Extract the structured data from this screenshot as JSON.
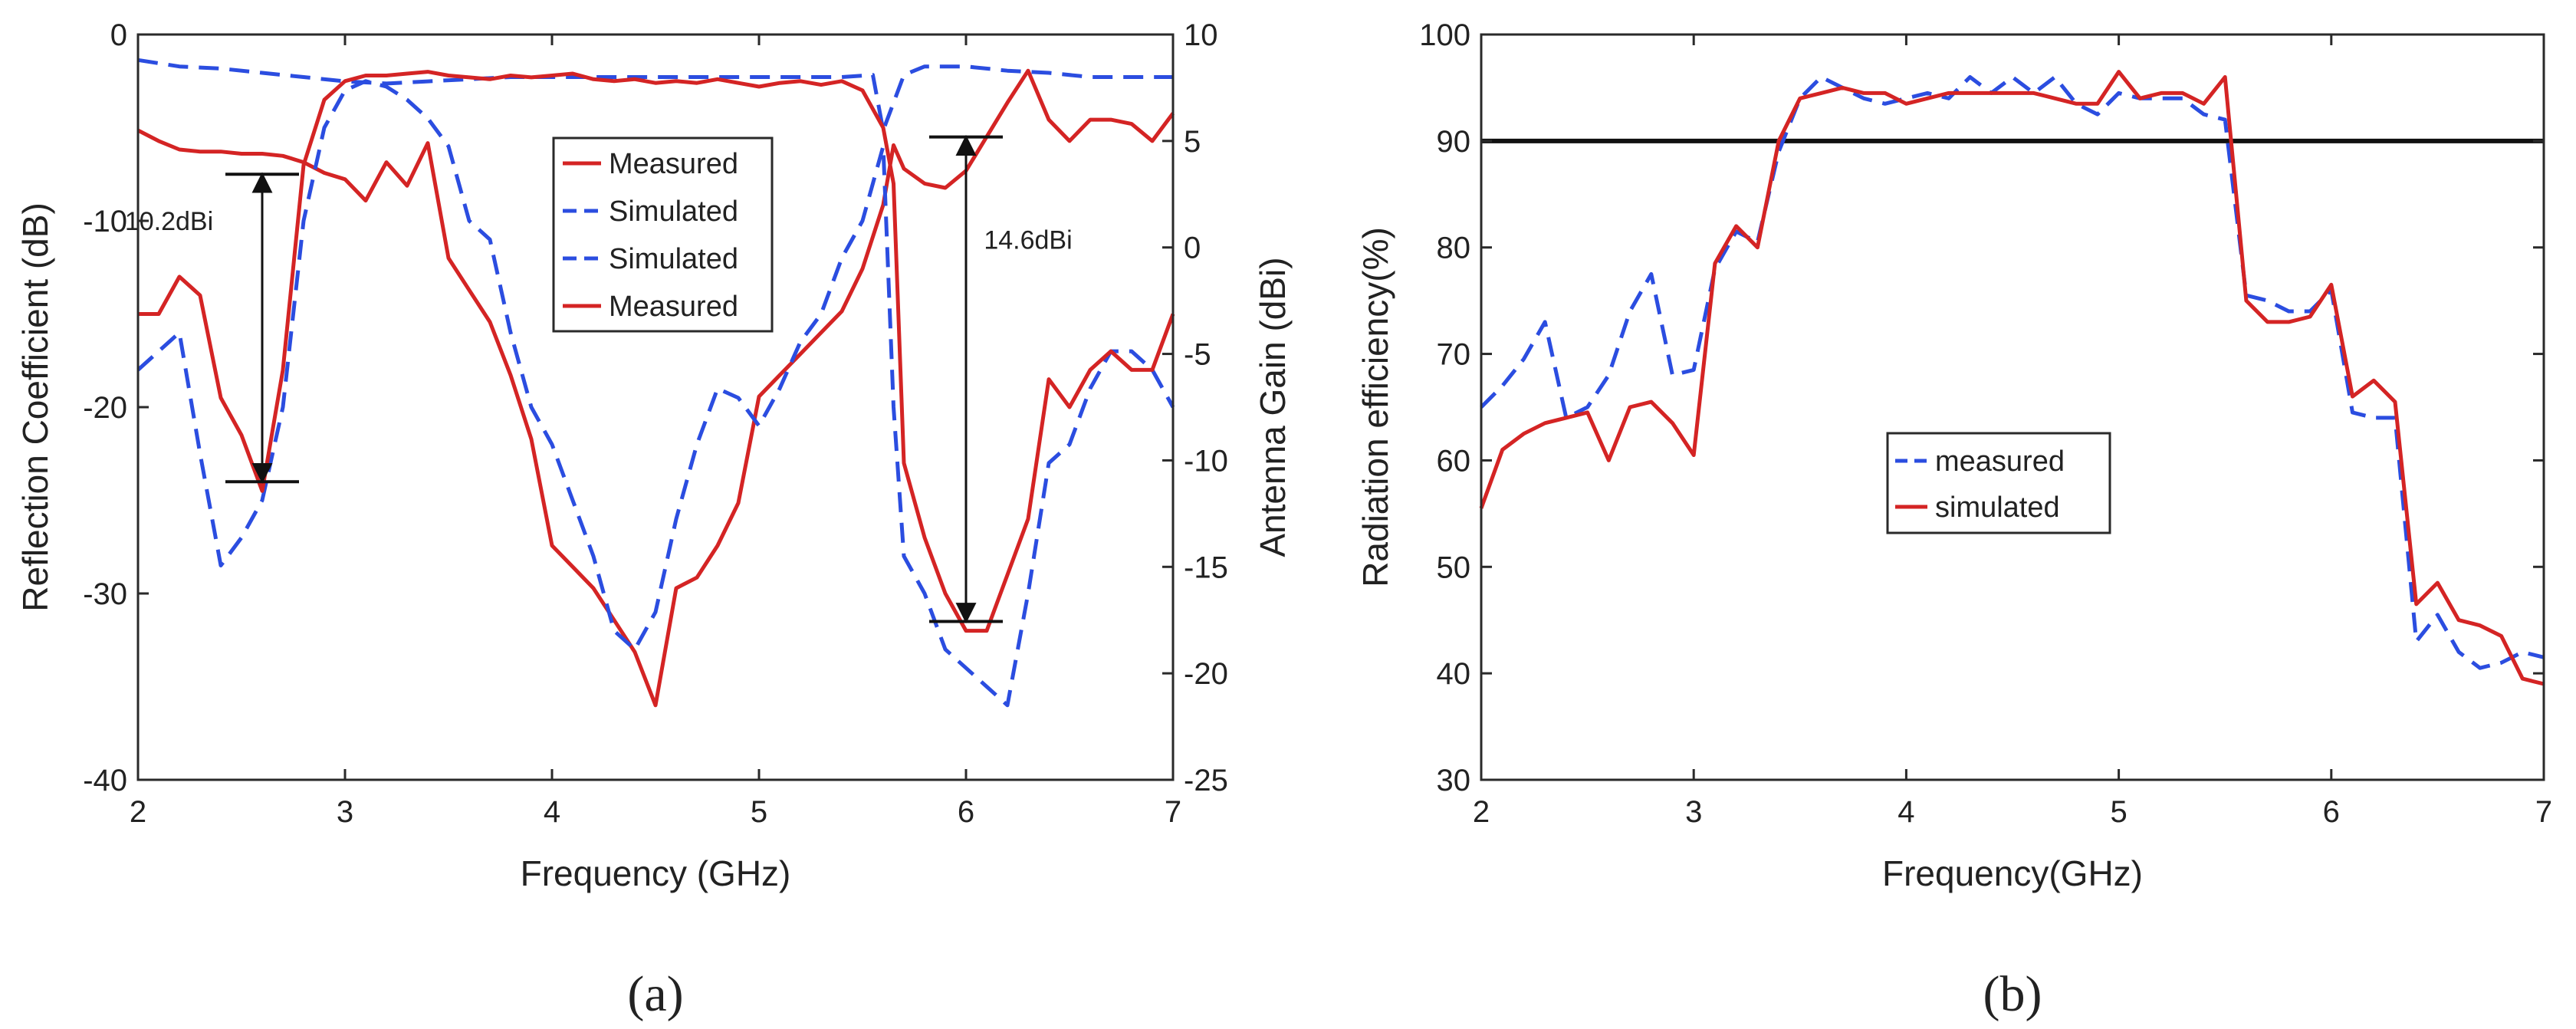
{
  "chart_data": [
    {
      "panel": "a",
      "caption": "(a)",
      "type": "line",
      "xlabel": "Frequency (GHz)",
      "ylabel": "Reflection Coefficient (dB)",
      "y2label": "Antenna Gain (dBi)",
      "xlim": [
        2,
        7
      ],
      "ylim": [
        -40,
        0
      ],
      "y2lim": [
        -25,
        10
      ],
      "xticks": [
        "2",
        "3",
        "4",
        "5",
        "6",
        "7"
      ],
      "yticks": [
        "-40",
        "-30",
        "-20",
        "-10",
        "0"
      ],
      "y2ticks": [
        "-25",
        "-20",
        "-15",
        "-10",
        "-5",
        "0",
        "5",
        "10"
      ],
      "legend_position": "center",
      "legend": [
        "Measured",
        "Simulated",
        "Simulated",
        "Measured"
      ],
      "series": [
        {
          "name": "Measured",
          "axis": "right",
          "style": "solid",
          "color": "#d42424",
          "x": [
            2.0,
            2.1,
            2.2,
            2.3,
            2.4,
            2.5,
            2.6,
            2.7,
            2.8,
            2.9,
            3.0,
            3.1,
            3.2,
            3.3,
            3.4,
            3.5,
            3.6,
            3.7,
            3.8,
            3.9,
            4.0,
            4.1,
            4.2,
            4.3,
            4.4,
            4.5,
            4.6,
            4.7,
            4.8,
            4.9,
            5.0,
            5.1,
            5.2,
            5.3,
            5.4,
            5.5,
            5.6,
            5.65,
            5.7,
            5.8,
            5.9,
            6.0,
            6.1,
            6.2,
            6.3,
            6.4,
            6.5,
            6.6,
            6.7,
            6.8,
            6.9,
            7.0
          ],
          "values": [
            5.5,
            5.0,
            4.6,
            4.5,
            4.5,
            4.4,
            4.4,
            4.3,
            4.0,
            3.5,
            3.2,
            2.2,
            4.0,
            2.9,
            4.9,
            -0.5,
            -2.0,
            -3.5,
            -6.0,
            -9.0,
            -14.0,
            -15.0,
            -16.0,
            -17.5,
            -19.0,
            -21.5,
            -16.0,
            -15.5,
            -14.0,
            -12.0,
            -7.0,
            -6.0,
            -5.0,
            -4.0,
            -3.0,
            -1.0,
            2.0,
            4.8,
            3.7,
            3.0,
            2.8,
            3.6,
            5.2,
            6.8,
            8.3,
            6.0,
            5.0,
            6.0,
            6.0,
            5.8,
            5.0,
            6.3
          ]
        },
        {
          "name": "Simulated",
          "axis": "right",
          "style": "dashed",
          "color": "#2b4de0",
          "x": [
            2.0,
            2.2,
            2.4,
            2.6,
            2.8,
            3.0,
            3.2,
            3.4,
            3.6,
            3.8,
            4.0,
            4.2,
            4.4,
            4.6,
            4.8,
            5.0,
            5.2,
            5.4,
            5.55,
            5.6,
            5.7,
            5.8,
            6.0,
            6.2,
            6.4,
            6.6,
            6.8,
            7.0
          ],
          "values": [
            8.8,
            8.5,
            8.4,
            8.2,
            8.0,
            7.8,
            7.7,
            7.8,
            7.9,
            8.0,
            8.0,
            8.0,
            8.0,
            8.0,
            8.0,
            8.0,
            8.0,
            8.0,
            8.1,
            5.5,
            8.1,
            8.5,
            8.5,
            8.3,
            8.2,
            8.0,
            8.0,
            8.0
          ]
        },
        {
          "name": "Simulated",
          "axis": "left",
          "style": "dashed",
          "color": "#2b4de0",
          "x": [
            2.0,
            2.1,
            2.2,
            2.3,
            2.4,
            2.5,
            2.6,
            2.7,
            2.8,
            2.9,
            3.0,
            3.1,
            3.2,
            3.3,
            3.4,
            3.5,
            3.6,
            3.7,
            3.8,
            3.9,
            4.0,
            4.1,
            4.2,
            4.3,
            4.4,
            4.5,
            4.6,
            4.7,
            4.8,
            4.9,
            5.0,
            5.1,
            5.2,
            5.3,
            5.4,
            5.5,
            5.6,
            5.65,
            5.7,
            5.8,
            5.9,
            6.0,
            6.1,
            6.2,
            6.3,
            6.4,
            6.5,
            6.6,
            6.7,
            6.8,
            6.9,
            7.0
          ],
          "values": [
            -18.0,
            -17.0,
            -16.0,
            -22.5,
            -28.5,
            -27.0,
            -25.0,
            -20.0,
            -10.0,
            -5.0,
            -3.0,
            -2.5,
            -2.8,
            -3.5,
            -4.5,
            -6.0,
            -10.0,
            -11.0,
            -16.0,
            -20.0,
            -22.0,
            -25.0,
            -28.0,
            -32.0,
            -33.0,
            -31.0,
            -26.0,
            -22.0,
            -19.0,
            -19.5,
            -21.0,
            -19.0,
            -16.5,
            -15.0,
            -12.0,
            -10.0,
            -6.0,
            -20.0,
            -28.0,
            -30.0,
            -33.0,
            -34.0,
            -35.0,
            -36.0,
            -30.0,
            -23.0,
            -22.0,
            -19.0,
            -17.0,
            -17.0,
            -18.0,
            -20.0
          ]
        },
        {
          "name": "Measured",
          "axis": "left",
          "style": "solid",
          "color": "#d42424",
          "x": [
            2.0,
            2.1,
            2.2,
            2.3,
            2.4,
            2.5,
            2.6,
            2.7,
            2.8,
            2.9,
            3.0,
            3.1,
            3.2,
            3.3,
            3.4,
            3.5,
            3.6,
            3.7,
            3.8,
            3.9,
            4.0,
            4.1,
            4.2,
            4.3,
            4.4,
            4.5,
            4.6,
            4.7,
            4.8,
            4.9,
            5.0,
            5.1,
            5.2,
            5.3,
            5.4,
            5.5,
            5.6,
            5.65,
            5.7,
            5.8,
            5.9,
            6.0,
            6.1,
            6.2,
            6.3,
            6.4,
            6.5,
            6.6,
            6.7,
            6.8,
            6.9,
            7.0
          ],
          "values": [
            -15.0,
            -15.0,
            -13.0,
            -14.0,
            -19.5,
            -21.5,
            -24.5,
            -18.0,
            -7.0,
            -3.5,
            -2.5,
            -2.2,
            -2.2,
            -2.1,
            -2.0,
            -2.2,
            -2.3,
            -2.4,
            -2.2,
            -2.3,
            -2.2,
            -2.1,
            -2.4,
            -2.5,
            -2.4,
            -2.6,
            -2.5,
            -2.6,
            -2.4,
            -2.6,
            -2.8,
            -2.6,
            -2.5,
            -2.7,
            -2.5,
            -3.0,
            -5.0,
            -8.0,
            -23.0,
            -27.0,
            -30.0,
            -32.0,
            -32.0,
            -29.0,
            -26.0,
            -18.5,
            -20.0,
            -18.0,
            -17.0,
            -18.0,
            -18.0,
            -15.0
          ]
        }
      ],
      "annotations": [
        {
          "text": "10.2dBi",
          "x": 2.15,
          "y": -10.5,
          "arrow_x": 2.6,
          "from_y": -7.5,
          "to_y": -24.0
        },
        {
          "text": "14.6dBi",
          "x": 6.3,
          "y": -11.5,
          "arrow_x": 6.0,
          "from_y": -5.5,
          "to_y": -31.5
        }
      ]
    },
    {
      "panel": "b",
      "caption": "(b)",
      "type": "line",
      "xlabel": "Frequency(GHz)",
      "ylabel": "Radiation efficiency(%)",
      "xlim": [
        2,
        7
      ],
      "ylim": [
        30,
        100
      ],
      "xticks": [
        "2",
        "3",
        "4",
        "5",
        "6",
        "7"
      ],
      "yticks": [
        "30",
        "40",
        "50",
        "60",
        "70",
        "80",
        "90",
        "100"
      ],
      "legend_position": "center",
      "legend": [
        "measured",
        "simulated"
      ],
      "reference_line": 90,
      "series": [
        {
          "name": "measured",
          "style": "dashed",
          "color": "#2b4de0",
          "x": [
            2.0,
            2.1,
            2.2,
            2.3,
            2.4,
            2.5,
            2.6,
            2.7,
            2.8,
            2.9,
            3.0,
            3.1,
            3.2,
            3.3,
            3.4,
            3.5,
            3.6,
            3.7,
            3.8,
            3.9,
            4.0,
            4.1,
            4.2,
            4.3,
            4.4,
            4.5,
            4.6,
            4.7,
            4.8,
            4.9,
            5.0,
            5.1,
            5.2,
            5.3,
            5.4,
            5.5,
            5.6,
            5.7,
            5.8,
            5.9,
            6.0,
            6.1,
            6.2,
            6.3,
            6.4,
            6.5,
            6.6,
            6.7,
            6.8,
            6.9,
            7.0
          ],
          "values": [
            65.0,
            67.0,
            69.5,
            73.0,
            64.0,
            65.0,
            68.0,
            74.0,
            77.5,
            68.0,
            68.5,
            78.0,
            81.5,
            80.5,
            89.0,
            94.0,
            96.0,
            95.0,
            94.0,
            93.5,
            94.0,
            94.5,
            94.0,
            96.0,
            94.5,
            96.0,
            94.5,
            96.0,
            93.5,
            92.5,
            94.5,
            94.0,
            94.0,
            94.0,
            92.5,
            92.0,
            75.5,
            75.0,
            74.0,
            74.0,
            76.0,
            64.5,
            64.0,
            64.0,
            43.0,
            45.5,
            42.0,
            40.5,
            41.0,
            42.0,
            41.5
          ]
        },
        {
          "name": "simulated",
          "style": "solid",
          "color": "#d42424",
          "x": [
            2.0,
            2.1,
            2.2,
            2.3,
            2.4,
            2.5,
            2.6,
            2.7,
            2.8,
            2.9,
            3.0,
            3.1,
            3.2,
            3.3,
            3.4,
            3.5,
            3.6,
            3.7,
            3.8,
            3.9,
            4.0,
            4.1,
            4.2,
            4.3,
            4.4,
            4.5,
            4.6,
            4.7,
            4.8,
            4.9,
            5.0,
            5.1,
            5.2,
            5.3,
            5.4,
            5.5,
            5.6,
            5.7,
            5.8,
            5.9,
            6.0,
            6.1,
            6.2,
            6.3,
            6.4,
            6.5,
            6.6,
            6.7,
            6.8,
            6.9,
            7.0
          ],
          "values": [
            55.5,
            61.0,
            62.5,
            63.5,
            64.0,
            64.5,
            60.0,
            65.0,
            65.5,
            63.5,
            60.5,
            78.5,
            82.0,
            80.0,
            90.0,
            94.0,
            94.5,
            95.0,
            94.5,
            94.5,
            93.5,
            94.0,
            94.5,
            94.5,
            94.5,
            94.5,
            94.5,
            94.0,
            93.5,
            93.5,
            96.5,
            94.0,
            94.5,
            94.5,
            93.5,
            96.0,
            75.0,
            73.0,
            73.0,
            73.5,
            76.5,
            66.0,
            67.5,
            65.5,
            46.5,
            48.5,
            45.0,
            44.5,
            43.5,
            39.5,
            39.0
          ]
        }
      ]
    }
  ]
}
